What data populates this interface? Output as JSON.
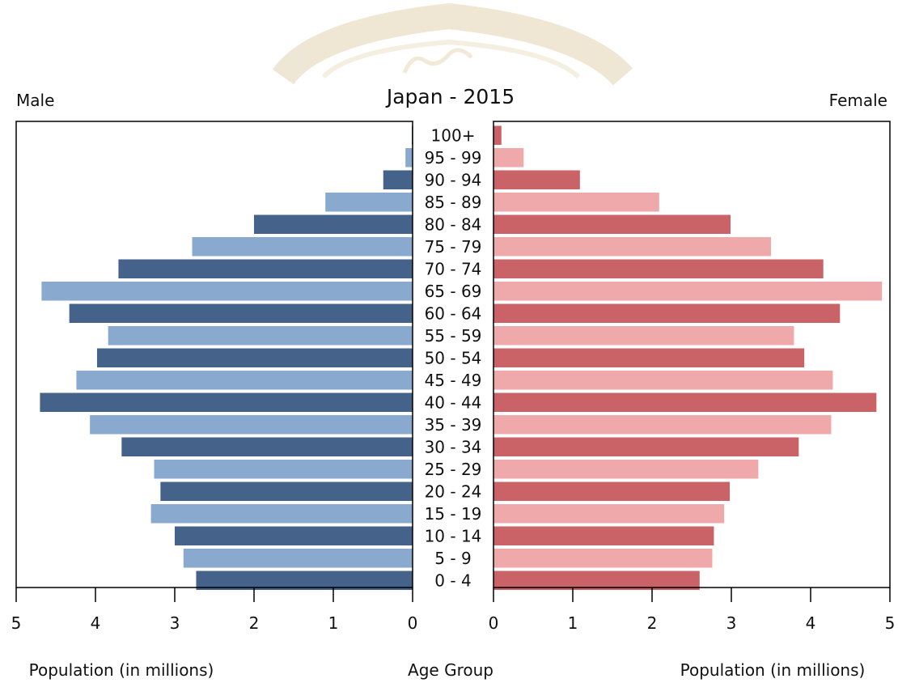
{
  "chart_data": {
    "type": "bar",
    "subtype": "population-pyramid",
    "title": "Japan - 2015",
    "left_label": "Male",
    "right_label": "Female",
    "xlabel_left": "Population (in millions)",
    "xlabel_center": "Age Group",
    "xlabel_right": "Population (in millions)",
    "xlim": [
      0,
      5
    ],
    "xticks": [
      0,
      1,
      2,
      3,
      4,
      5
    ],
    "grid": false,
    "categories": [
      "100+",
      "95 - 99",
      "90 - 94",
      "85 - 89",
      "80 - 84",
      "75 - 79",
      "70 - 74",
      "65 - 69",
      "60 - 64",
      "55 - 59",
      "50 - 54",
      "45 - 49",
      "40 - 44",
      "35 - 39",
      "30 - 34",
      "25 - 29",
      "20 - 24",
      "15 - 19",
      "10 - 14",
      "5 - 9",
      "0 - 4"
    ],
    "series": [
      {
        "name": "Male",
        "values": [
          0.01,
          0.09,
          0.37,
          1.1,
          2.0,
          2.78,
          3.71,
          4.68,
          4.33,
          3.84,
          3.98,
          4.24,
          4.7,
          4.07,
          3.67,
          3.26,
          3.18,
          3.3,
          3.0,
          2.89,
          2.73
        ]
      },
      {
        "name": "Female",
        "values": [
          0.1,
          0.38,
          1.09,
          2.09,
          2.99,
          3.5,
          4.16,
          4.9,
          4.37,
          3.79,
          3.92,
          4.28,
          4.83,
          4.26,
          3.85,
          3.34,
          2.98,
          2.91,
          2.78,
          2.76,
          2.6
        ]
      }
    ],
    "colors": {
      "male_dark": "#45628a",
      "male_light": "#89a9cf",
      "female_dark": "#c96367",
      "female_light": "#f0a9ab"
    }
  }
}
